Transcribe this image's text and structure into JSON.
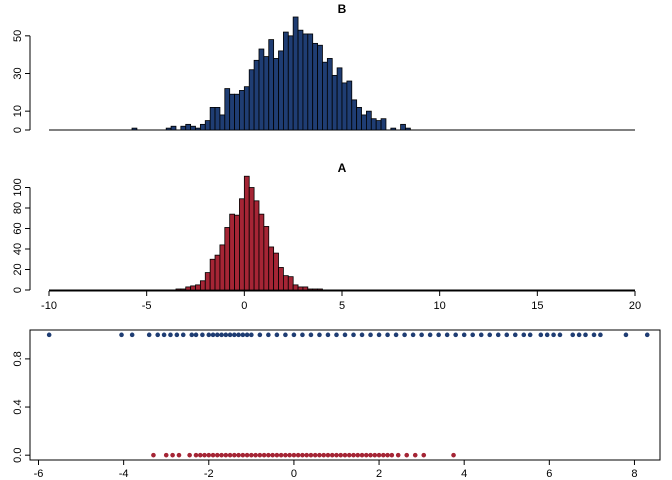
{
  "colors": {
    "blue": "#1f3d73",
    "red": "#a52535",
    "axis": "#000000"
  },
  "chart_data": [
    {
      "type": "bar",
      "title": "B",
      "bin_width": 0.25,
      "xlim": [
        -10,
        20
      ],
      "ylim": [
        0,
        60
      ],
      "yticks": [
        0,
        10,
        30,
        50
      ],
      "baseline": [
        -10,
        20
      ],
      "bins": [
        [
          -5.75,
          1
        ],
        [
          -4.0,
          1
        ],
        [
          -3.75,
          2
        ],
        [
          -3.25,
          2
        ],
        [
          -3.0,
          3
        ],
        [
          -2.75,
          2
        ],
        [
          -2.5,
          1
        ],
        [
          -2.25,
          3
        ],
        [
          -2.0,
          5
        ],
        [
          -1.75,
          12
        ],
        [
          -1.5,
          12
        ],
        [
          -1.25,
          8
        ],
        [
          -1.0,
          22
        ],
        [
          -0.75,
          19
        ],
        [
          -0.5,
          19
        ],
        [
          -0.25,
          21
        ],
        [
          0.0,
          23
        ],
        [
          0.25,
          32
        ],
        [
          0.5,
          37
        ],
        [
          0.75,
          43
        ],
        [
          1.0,
          39
        ],
        [
          1.25,
          48
        ],
        [
          1.5,
          38
        ],
        [
          1.75,
          42
        ],
        [
          2.0,
          52
        ],
        [
          2.25,
          50
        ],
        [
          2.5,
          60
        ],
        [
          2.75,
          53
        ],
        [
          3.0,
          51
        ],
        [
          3.25,
          51
        ],
        [
          3.5,
          46
        ],
        [
          3.75,
          45
        ],
        [
          4.0,
          36
        ],
        [
          4.25,
          38
        ],
        [
          4.5,
          29
        ],
        [
          4.75,
          33
        ],
        [
          5.0,
          25
        ],
        [
          5.25,
          26
        ],
        [
          5.5,
          16
        ],
        [
          5.75,
          12
        ],
        [
          6.0,
          8
        ],
        [
          6.25,
          10
        ],
        [
          6.5,
          6
        ],
        [
          6.75,
          5
        ],
        [
          7.0,
          6
        ],
        [
          7.5,
          1
        ],
        [
          8.0,
          3
        ],
        [
          8.25,
          1
        ]
      ]
    },
    {
      "type": "bar",
      "title": "A",
      "bin_width": 0.25,
      "xlim": [
        -10,
        20
      ],
      "ylim": [
        0,
        120
      ],
      "yticks": [
        0,
        20,
        40,
        60,
        80,
        100
      ],
      "xticks": [
        -10,
        -5,
        0,
        5,
        10,
        15,
        20
      ],
      "baseline": [
        -10,
        20
      ],
      "bins": [
        [
          -3.5,
          1
        ],
        [
          -3.25,
          1
        ],
        [
          -3.0,
          3
        ],
        [
          -2.75,
          4
        ],
        [
          -2.5,
          5
        ],
        [
          -2.25,
          9
        ],
        [
          -2.0,
          17
        ],
        [
          -1.75,
          30
        ],
        [
          -1.5,
          34
        ],
        [
          -1.25,
          44
        ],
        [
          -1.0,
          61
        ],
        [
          -0.75,
          74
        ],
        [
          -0.5,
          73
        ],
        [
          -0.25,
          89
        ],
        [
          0.0,
          111
        ],
        [
          0.25,
          100
        ],
        [
          0.5,
          87
        ],
        [
          0.75,
          74
        ],
        [
          1.0,
          62
        ],
        [
          1.25,
          42
        ],
        [
          1.5,
          36
        ],
        [
          1.75,
          22
        ],
        [
          2.0,
          14
        ],
        [
          2.25,
          13
        ],
        [
          2.5,
          5
        ],
        [
          2.75,
          3
        ],
        [
          3.0,
          3
        ],
        [
          3.25,
          1
        ],
        [
          3.5,
          1
        ],
        [
          3.75,
          1
        ]
      ]
    },
    {
      "type": "scatter",
      "xlim": [
        -6.2,
        8.6
      ],
      "ylim": [
        -0.04,
        1.04
      ],
      "xticks": [
        -6,
        -4,
        -2,
        0,
        2,
        4,
        6,
        8
      ],
      "yticks": [
        0.0,
        0.4,
        0.8
      ],
      "series": [
        {
          "color_key": "blue",
          "y": 1,
          "x": [
            -5.75,
            -4.05,
            -3.8,
            -3.4,
            -3.2,
            -3.05,
            -2.9,
            -2.75,
            -2.6,
            -2.4,
            -2.3,
            -2.15,
            -2.0,
            -1.9,
            -1.8,
            -1.7,
            -1.6,
            -1.5,
            -1.4,
            -1.3,
            -1.2,
            -1.1,
            -1.0,
            -0.8,
            -0.6,
            -0.4,
            -0.2,
            0.0,
            0.2,
            0.4,
            0.6,
            0.8,
            1.0,
            1.2,
            1.4,
            1.6,
            1.8,
            2.0,
            2.2,
            2.4,
            2.6,
            2.8,
            3.0,
            3.2,
            3.4,
            3.6,
            3.8,
            4.0,
            4.2,
            4.4,
            4.6,
            4.8,
            5.0,
            5.2,
            5.4,
            5.55,
            5.8,
            5.95,
            6.1,
            6.25,
            6.55,
            6.7,
            6.85,
            7.05,
            7.2,
            7.8,
            8.3
          ]
        },
        {
          "color_key": "red",
          "y": 0,
          "x": [
            -3.3,
            -3.0,
            -2.85,
            -2.7,
            -2.45,
            -2.3,
            -2.2,
            -2.1,
            -2.0,
            -1.9,
            -1.8,
            -1.7,
            -1.6,
            -1.5,
            -1.4,
            -1.3,
            -1.2,
            -1.1,
            -1.0,
            -0.9,
            -0.8,
            -0.7,
            -0.6,
            -0.5,
            -0.4,
            -0.3,
            -0.2,
            -0.1,
            0.0,
            0.1,
            0.2,
            0.3,
            0.4,
            0.5,
            0.6,
            0.7,
            0.8,
            0.9,
            1.0,
            1.1,
            1.2,
            1.3,
            1.4,
            1.5,
            1.6,
            1.7,
            1.8,
            1.9,
            2.0,
            2.1,
            2.2,
            2.3,
            2.45,
            2.65,
            2.85,
            3.05,
            3.75
          ]
        }
      ]
    }
  ]
}
